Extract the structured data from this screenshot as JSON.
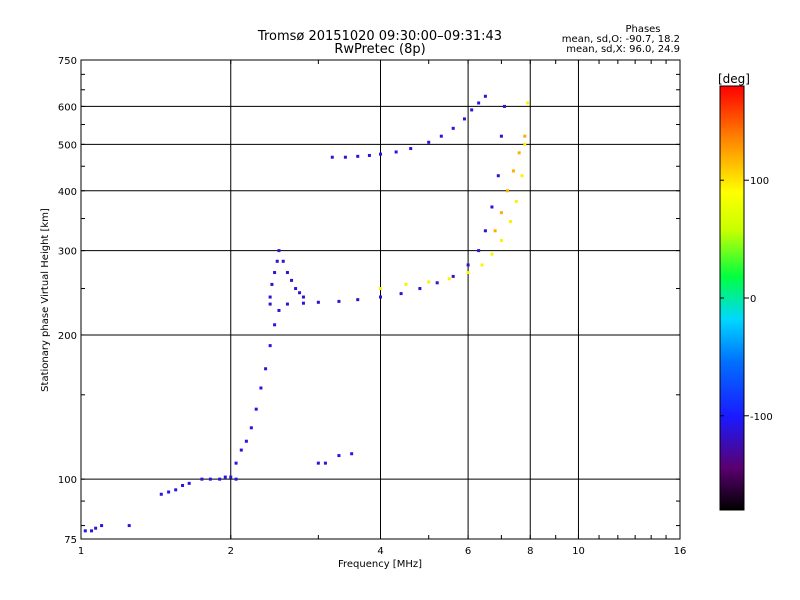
{
  "header": {
    "title_line1": "Tromsø 20151020 09:30:00–09:31:43",
    "title_line2": "RwPretec (8p)",
    "stats_title": "Phases",
    "stats_o": "mean, sd,O: -90.7, 18.2",
    "stats_x": "mean, sd,X:  96.0, 24.9"
  },
  "colorbar": {
    "label": "[deg]",
    "ticks": [
      {
        "value": 100,
        "label": "100"
      },
      {
        "value": 0,
        "label": "0"
      },
      {
        "value": -100,
        "label": "-100"
      }
    ],
    "min": -180,
    "max": 180
  },
  "chart_data": {
    "type": "scatter",
    "title": "Tromsø 20151020 09:30:00–09:31:43",
    "subtitle": "RwPretec (8p)",
    "xlabel": "Frequency [MHz]",
    "ylabel": "Stationary phase Virtual Height [km]",
    "x_scale": "log",
    "y_scale": "log",
    "xlim": [
      1,
      16
    ],
    "ylim": [
      75,
      750
    ],
    "x_ticks": [
      1,
      2,
      4,
      6,
      8,
      10,
      16
    ],
    "y_ticks": [
      75,
      100,
      200,
      300,
      400,
      500,
      600,
      750
    ],
    "grid": true,
    "color_variable": "phase [deg]",
    "traces": [
      {
        "name": "",
        "phase": -110,
        "x": [
          1.02,
          1.05,
          1.07,
          1.1,
          1.25,
          1.45,
          1.5,
          1.55,
          1.6,
          1.65,
          1.75,
          1.82,
          1.9,
          1.95,
          2.0,
          2.05
        ],
        "y": [
          78,
          78,
          79,
          80,
          80,
          93,
          94,
          95,
          97,
          98,
          100,
          100,
          100,
          101,
          101,
          100
        ]
      },
      {
        "name": "",
        "phase": -110,
        "x": [
          2.05,
          2.1,
          2.15,
          2.2,
          2.25,
          2.3,
          2.35,
          2.4,
          2.45,
          2.5
        ],
        "y": [
          108,
          115,
          120,
          128,
          140,
          155,
          170,
          190,
          210,
          225
        ]
      },
      {
        "name": "",
        "phase": -115,
        "x": [
          2.4,
          2.42,
          2.45,
          2.48,
          2.5,
          2.55,
          2.6,
          2.65,
          2.7,
          2.75,
          2.8
        ],
        "y": [
          240,
          255,
          270,
          285,
          300,
          285,
          270,
          260,
          250,
          245,
          240
        ]
      },
      {
        "name": "",
        "phase": -115,
        "x": [
          2.4,
          2.6,
          2.8,
          3.0,
          3.3,
          3.6,
          4.0,
          4.4,
          4.8,
          5.2,
          5.6,
          6.0,
          6.3,
          6.5,
          6.7,
          6.9,
          7.0,
          7.1
        ],
        "y": [
          232,
          232,
          233,
          234,
          235,
          237,
          240,
          244,
          250,
          257,
          265,
          280,
          300,
          330,
          370,
          430,
          520,
          600
        ]
      },
      {
        "name": "",
        "phase": 95,
        "x": [
          4.0,
          4.5,
          5.0,
          5.5,
          6.0,
          6.4,
          6.7,
          7.0,
          7.3,
          7.5,
          7.7,
          7.8,
          7.9
        ],
        "y": [
          250,
          255,
          258,
          262,
          270,
          280,
          295,
          315,
          345,
          380,
          430,
          500,
          610
        ]
      },
      {
        "name": "",
        "phase": -110,
        "x": [
          3.2,
          3.4,
          3.6,
          3.8,
          4.0,
          4.3,
          4.6,
          5.0,
          5.3,
          5.6,
          5.9,
          6.1,
          6.3,
          6.5
        ],
        "y": [
          470,
          470,
          472,
          474,
          477,
          482,
          490,
          505,
          520,
          540,
          565,
          590,
          610,
          630
        ]
      },
      {
        "name": "",
        "phase": -110,
        "x": [
          3.0,
          3.1,
          3.3,
          3.5
        ],
        "y": [
          108,
          108,
          112,
          113
        ]
      },
      {
        "name": "",
        "phase": 120,
        "x": [
          6.8,
          7.0,
          7.2,
          7.4,
          7.6,
          7.8
        ],
        "y": [
          330,
          360,
          400,
          440,
          480,
          520
        ]
      }
    ]
  }
}
